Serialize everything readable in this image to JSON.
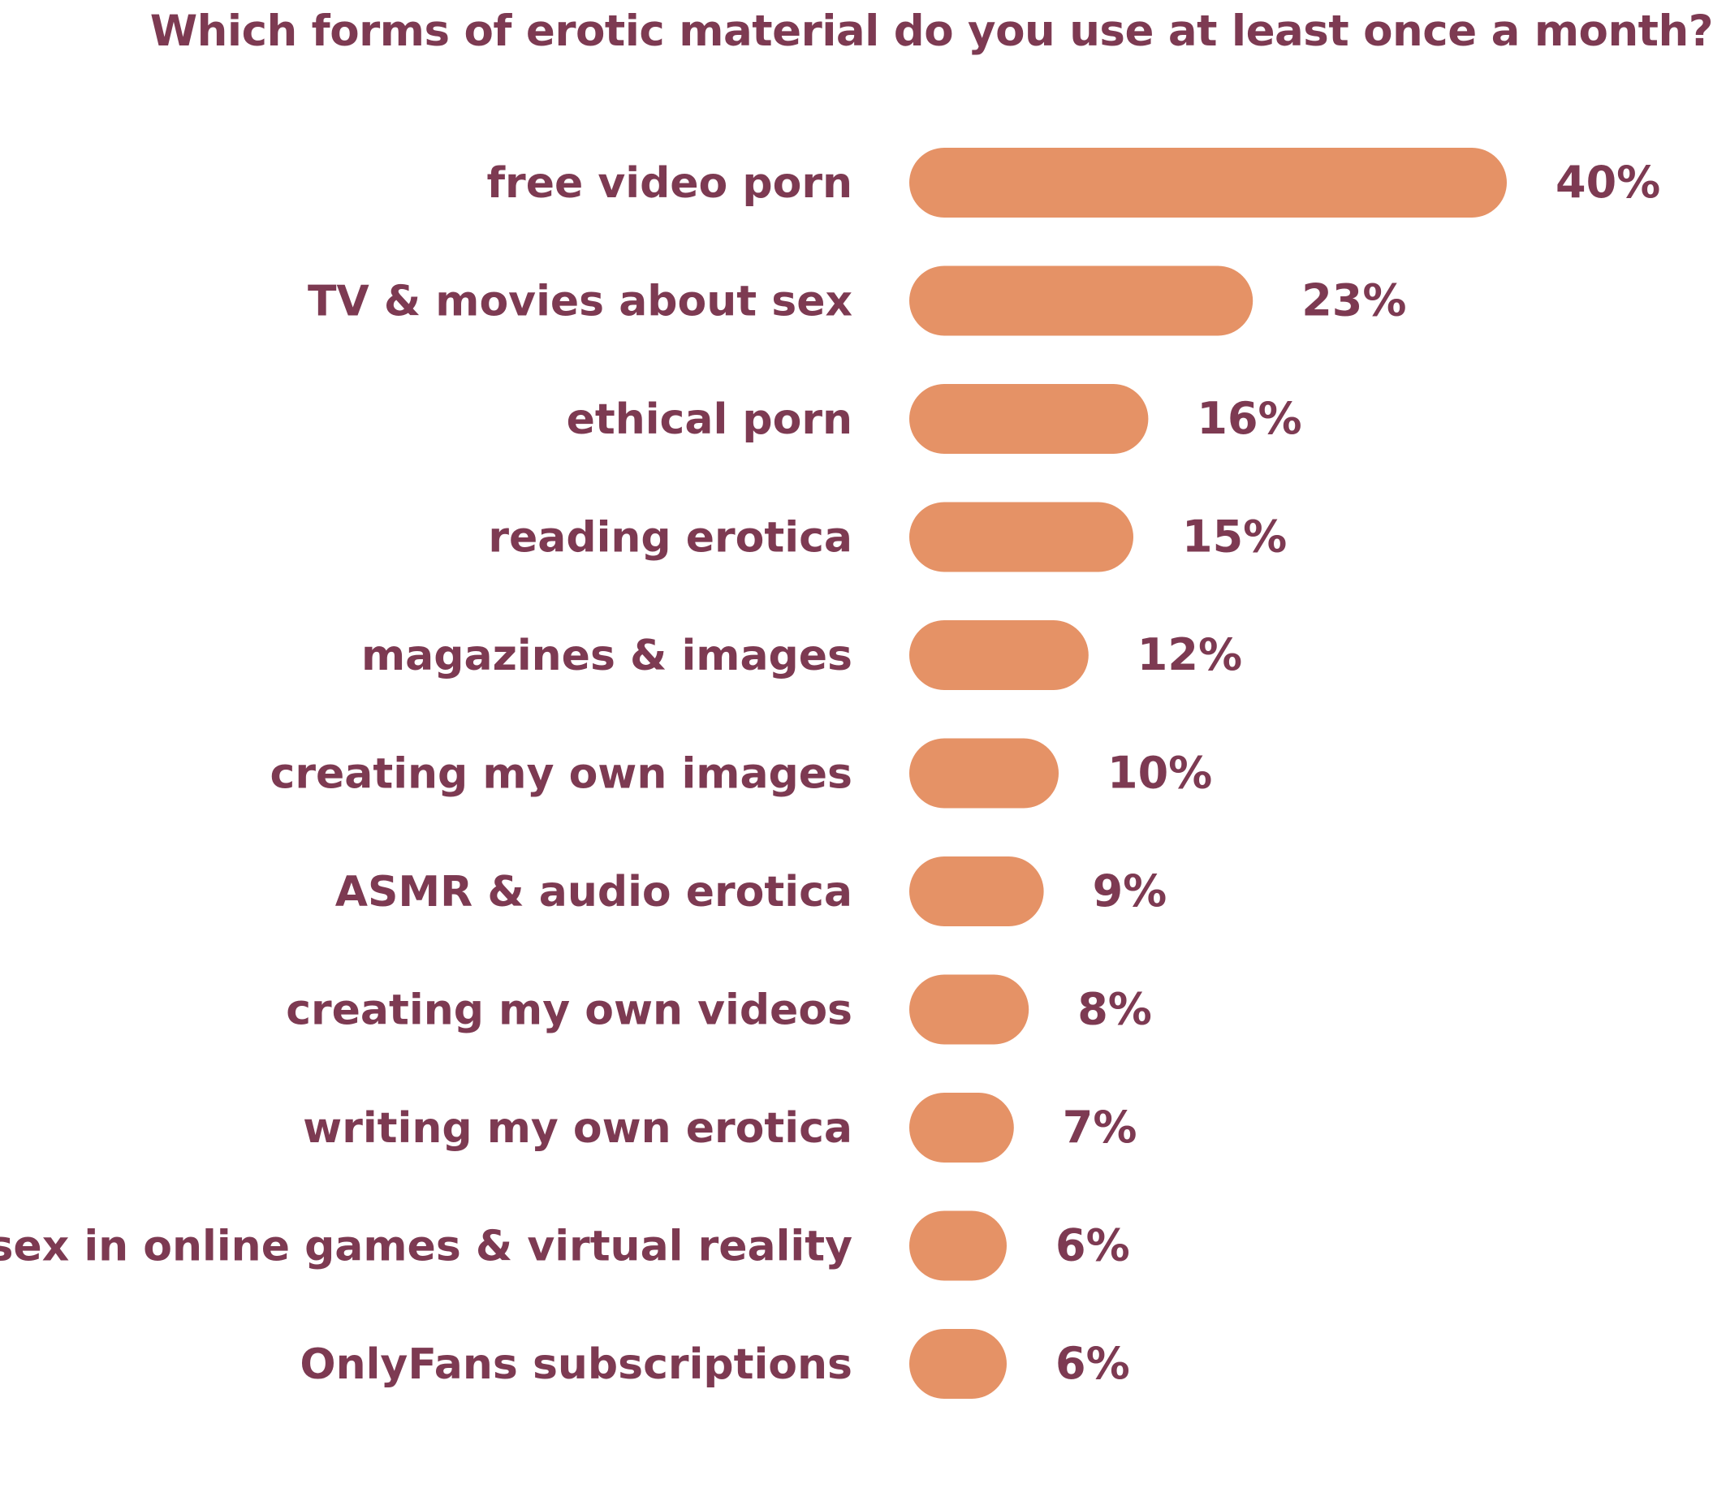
{
  "title": "Which forms of erotic material do you use at least once a month?",
  "colors": {
    "bar": "#e59266",
    "text": "#7d3a52",
    "background": "#ffffff"
  },
  "chart_data": {
    "type": "bar",
    "orientation": "horizontal",
    "title": "Which forms of erotic material do you use at least once a month?",
    "categories": [
      "free video porn",
      "TV & movies about sex",
      "ethical porn",
      "reading erotica",
      "magazines & images",
      "creating my own images",
      "ASMR & audio erotica",
      "creating my own videos",
      "writing my own erotica",
      "sex in online games & virtual reality",
      "OnlyFans subscriptions"
    ],
    "values": [
      40,
      23,
      16,
      15,
      12,
      10,
      9,
      8,
      7,
      6,
      6
    ],
    "value_labels": [
      "40%",
      "23%",
      "16%",
      "15%",
      "12%",
      "10%",
      "9%",
      "8%",
      "7%",
      "6%",
      "6%"
    ],
    "unit": "%",
    "xlabel": "",
    "ylabel": "",
    "grid": false,
    "legend": "none"
  }
}
